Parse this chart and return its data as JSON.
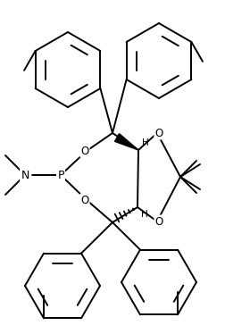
{
  "background_color": "#ffffff",
  "line_color": "#000000",
  "lw": 1.4,
  "figsize": [
    2.52,
    3.74
  ],
  "dpi": 100,
  "xlim": [
    0,
    252
  ],
  "ylim": [
    0,
    374
  ]
}
